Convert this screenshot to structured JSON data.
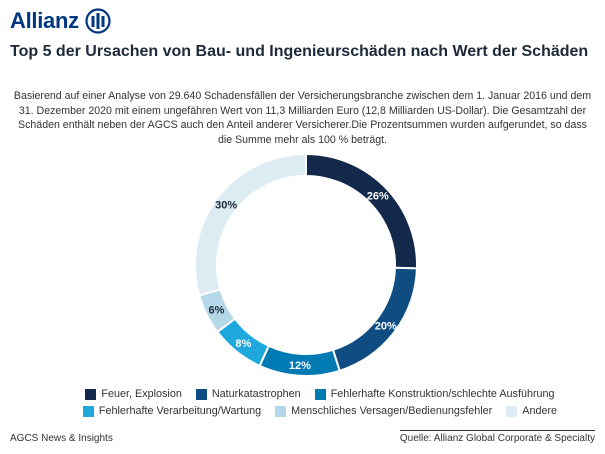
{
  "brand": {
    "name": "Allianz",
    "color": "#003781"
  },
  "title": "Top 5 der Ursachen von Bau- und Ingenieurschäden nach Wert der Schäden",
  "subtitle": "Basierend auf einer Analyse von 29.640 Schadensfällen der Versicherungsbranche zwischen dem 1. Januar 2016 und dem 31. Dezember 2020 mit einem ungefähren Wert von 11,3 Milliarden Euro (12,8 Milliarden US-Dollar). Die Gesamtzahl der Schäden enthält neben der AGCS auch den Anteil anderer Versicherer.Die Prozentsummen wurden aufgerundet, so dass die Summe mehr als 100 % beträgt.",
  "chart_data": {
    "type": "pie",
    "donut": true,
    "categories": [
      "Feuer, Explosion",
      "Naturkatastrophen",
      "Fehlerhafte Konstruktion/schlechte Ausführung",
      "Fehlerhafte Verarbeitung/Wartung",
      "Menschliches Versagen/Bedienungsfehler",
      "Andere"
    ],
    "values": [
      26,
      20,
      12,
      8,
      6,
      30
    ],
    "labels": [
      "26%",
      "20%",
      "12%",
      "8%",
      "6%",
      "30%"
    ],
    "colors": [
      "#13294b",
      "#0f4c81",
      "#007ab3",
      "#1ea8dc",
      "#b4d8e8",
      "#dcecf2"
    ],
    "label_colors": [
      "#ffffff",
      "#ffffff",
      "#ffffff",
      "#ffffff",
      "#1d2a3a",
      "#1d2a3a"
    ],
    "legend_position": "bottom"
  },
  "footer": {
    "left": "AGCS News & Insights",
    "right": "Quelle: Allianz Global Corporate & Specialty"
  }
}
